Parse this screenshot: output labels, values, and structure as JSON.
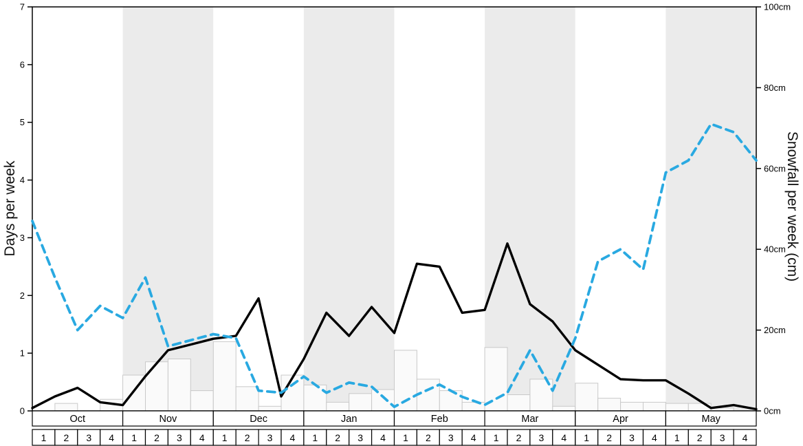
{
  "chart_data": {
    "type": "line",
    "title": "",
    "legend": "none",
    "months": [
      "Oct",
      "Nov",
      "Dec",
      "Jan",
      "Feb",
      "Mar",
      "Apr",
      "May"
    ],
    "weeks_per_month": 4,
    "week_labels": [
      "1",
      "2",
      "3",
      "4"
    ],
    "left_axis": {
      "label": "Days per week",
      "min": 0,
      "max": 7,
      "ticks": [
        {
          "value": 0,
          "label": "0"
        },
        {
          "value": 1,
          "label": "1"
        },
        {
          "value": 2,
          "label": "2"
        },
        {
          "value": 3,
          "label": "3"
        },
        {
          "value": 4,
          "label": "4"
        },
        {
          "value": 5,
          "label": "5"
        },
        {
          "value": 6,
          "label": "6"
        },
        {
          "value": 7,
          "label": "7"
        }
      ]
    },
    "right_axis": {
      "label": "Snowfall per week (cm)",
      "min": 0,
      "max": 100,
      "ticks": [
        {
          "value": 0,
          "label": "0cm"
        },
        {
          "value": 20,
          "label": "20cm"
        },
        {
          "value": 40,
          "label": "40cm"
        },
        {
          "value": 60,
          "label": "60cm"
        },
        {
          "value": 80,
          "label": "80cm"
        },
        {
          "value": 100,
          "label": "100cm"
        }
      ]
    },
    "colors": {
      "band": "#ebebeb",
      "background": "#ffffff",
      "bar_fill": "#fafafa",
      "bar_stroke": "#c9c9c9",
      "days_line": "#000000",
      "snowfall_line": "#29a9e1"
    },
    "series": [
      {
        "name": "days_per_week",
        "kind": "line",
        "axis": "left",
        "color": "#000000",
        "dash": "solid",
        "values": [
          0.05,
          0.25,
          0.4,
          0.15,
          0.1,
          0.6,
          1.05,
          1.15,
          1.25,
          1.3,
          1.95,
          0.25,
          0.9,
          1.7,
          1.3,
          1.8,
          1.35,
          2.55,
          2.5,
          1.7,
          1.75,
          2.9,
          1.85,
          1.55,
          1.05,
          0.8,
          0.55,
          0.53,
          0.53,
          0.3,
          0.05,
          0.1,
          0.03
        ]
      },
      {
        "name": "snowfall_per_week_cm",
        "kind": "line",
        "axis": "right",
        "color": "#29a9e1",
        "dash": "dashed",
        "values": [
          47,
          33,
          20,
          26,
          23,
          33,
          16,
          17.5,
          19,
          18,
          5,
          4.5,
          8.5,
          4.5,
          7,
          6,
          1,
          4,
          6.5,
          3.5,
          1.5,
          4.5,
          15,
          5,
          18,
          37,
          40,
          35,
          59,
          62,
          71,
          69,
          62
        ]
      },
      {
        "name": "weekly_bars",
        "kind": "bar",
        "axis": "left",
        "fill": "#fafafa",
        "stroke": "#c9c9c9",
        "values": [
          0,
          0.13,
          0,
          0.2,
          0.62,
          0.85,
          0.9,
          0.35,
          1.2,
          0.42,
          0.08,
          0.62,
          0.45,
          0.15,
          0.3,
          0.37,
          1.05,
          0.55,
          0.35,
          0.15,
          1.1,
          0.28,
          0.55,
          0.08,
          0.48,
          0.22,
          0.15,
          0.15,
          0.13,
          0.13,
          0.05,
          0
        ]
      }
    ]
  }
}
